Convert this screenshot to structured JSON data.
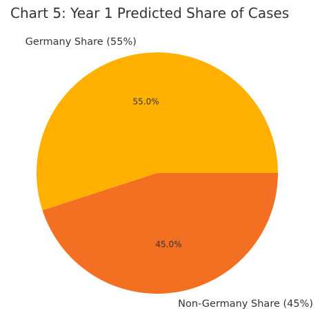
{
  "chart_data": {
    "type": "pie",
    "title": "Chart 5: Year 1 Predicted Share of Cases",
    "slices": [
      {
        "label": "Germany Share (55%)",
        "value": 55,
        "pct_label": "55.0%",
        "color": "#FFB000"
      },
      {
        "label": "Non-Germany Share (45%)",
        "value": 45,
        "pct_label": "45.0%",
        "color": "#F36F21"
      }
    ],
    "start_angle_deg": 0,
    "direction": "counterclockwise",
    "legend": "none"
  }
}
